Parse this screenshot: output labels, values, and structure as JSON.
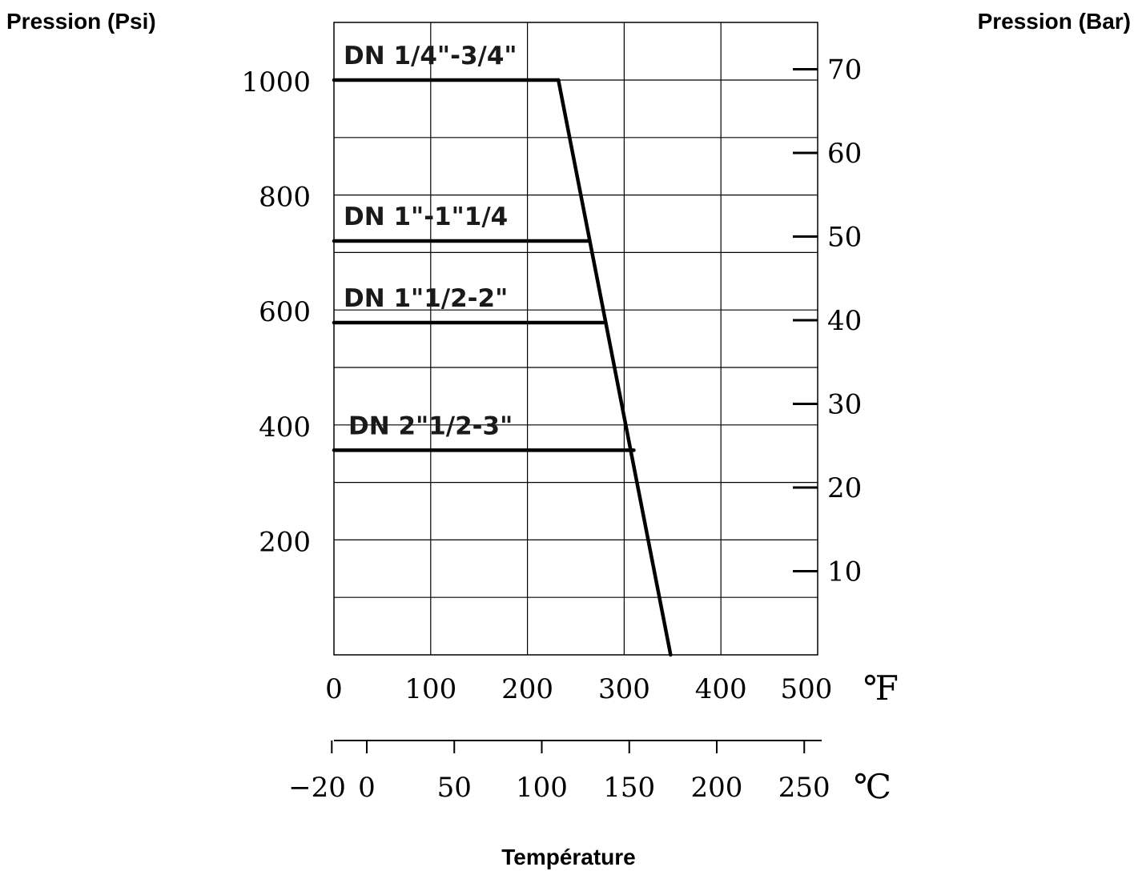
{
  "chart_data": {
    "type": "line",
    "left_axis_label": "Pression (Psi)",
    "right_axis_label": "Pression (Bar)",
    "xlabel": "Température",
    "x_unit_primary": "℉",
    "x_unit_secondary": "℃",
    "x_ticks_f": [
      "0",
      "100",
      "200",
      "300",
      "400",
      "500"
    ],
    "x_ticks_c": [
      "−20",
      "0",
      "50",
      "100",
      "150",
      "200",
      "250"
    ],
    "y_ticks_psi": [
      "200",
      "400",
      "600",
      "800",
      "1000"
    ],
    "y_ticks_bar": [
      "10",
      "20",
      "30",
      "40",
      "50",
      "60",
      "70"
    ],
    "xlim_f": [
      0,
      500
    ],
    "ylim_psi": [
      0,
      1100
    ],
    "grid": true,
    "diagonal_limit": {
      "x_f": [
        232,
        348
      ],
      "y_psi": [
        1000,
        0
      ]
    },
    "series": [
      {
        "name": "DN 1/4\"-3/4\"",
        "x_f": [
          0,
          232
        ],
        "y_psi": [
          1000,
          1000
        ]
      },
      {
        "name": "DN 1\"-1\"1/4",
        "x_f": [
          0,
          263
        ],
        "y_psi": [
          720,
          720
        ]
      },
      {
        "name": "DN 1\"1/2-2\"",
        "x_f": [
          0,
          278
        ],
        "y_psi": [
          578,
          578
        ]
      },
      {
        "name": "DN 2\"1/2-3\"",
        "x_f": [
          0,
          310
        ],
        "y_psi": [
          356,
          356
        ]
      }
    ]
  }
}
